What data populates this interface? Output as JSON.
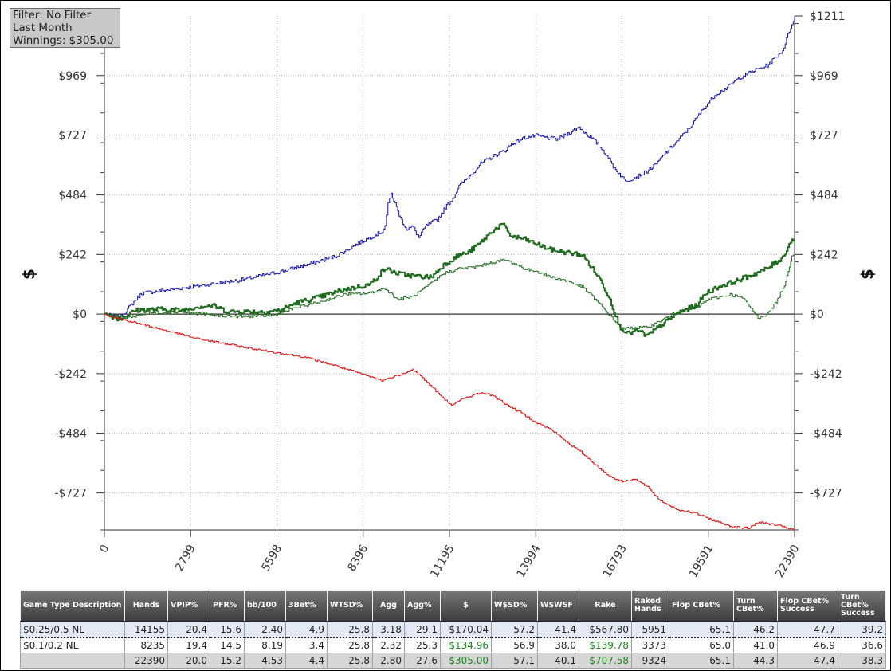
{
  "info": {
    "filter": "Filter: No Filter",
    "period": "Last Month",
    "winnings": "Winnings: $305.00"
  },
  "chart_data": {
    "type": "line",
    "ylabel": "$",
    "y_right_label": "$",
    "ylim": [
      -877,
      1211
    ],
    "xlim": [
      0,
      22390
    ],
    "y_ticks": [
      {
        "value": 1211,
        "label": "$1211"
      },
      {
        "value": 969,
        "label": "$969"
      },
      {
        "value": 727,
        "label": "$727"
      },
      {
        "value": 484,
        "label": "$484"
      },
      {
        "value": 242,
        "label": "$242"
      },
      {
        "value": 0,
        "label": "$0"
      },
      {
        "value": -242,
        "label": "-$242"
      },
      {
        "value": -484,
        "label": "-$484"
      },
      {
        "value": -727,
        "label": "-$727"
      }
    ],
    "x_ticks": [
      {
        "value": 0,
        "label": "0"
      },
      {
        "value": 2799,
        "label": "2799"
      },
      {
        "value": 5598,
        "label": "5598"
      },
      {
        "value": 8396,
        "label": "8396"
      },
      {
        "value": 11195,
        "label": "11195"
      },
      {
        "value": 13994,
        "label": "13994"
      },
      {
        "value": 16793,
        "label": "16793"
      },
      {
        "value": 19591,
        "label": "19591"
      },
      {
        "value": 22390,
        "label": "22390"
      }
    ],
    "grid": true,
    "series": [
      {
        "color": "#1010aa",
        "width": 1,
        "noise": 8,
        "points": [
          [
            0,
            0
          ],
          [
            500,
            -15
          ],
          [
            1200,
            85
          ],
          [
            2800,
            110
          ],
          [
            4500,
            140
          ],
          [
            5800,
            175
          ],
          [
            6700,
            205
          ],
          [
            7500,
            235
          ],
          [
            8200,
            285
          ],
          [
            9000,
            335
          ],
          [
            9100,
            360
          ],
          [
            9200,
            445
          ],
          [
            9300,
            490
          ],
          [
            9600,
            390
          ],
          [
            9800,
            345
          ],
          [
            10000,
            355
          ],
          [
            10200,
            310
          ],
          [
            10400,
            355
          ],
          [
            10800,
            385
          ],
          [
            11100,
            440
          ],
          [
            11300,
            470
          ],
          [
            11500,
            520
          ],
          [
            11800,
            555
          ],
          [
            12200,
            610
          ],
          [
            12600,
            640
          ],
          [
            13000,
            665
          ],
          [
            13200,
            690
          ],
          [
            13600,
            715
          ],
          [
            14000,
            725
          ],
          [
            14400,
            715
          ],
          [
            14700,
            710
          ],
          [
            15000,
            730
          ],
          [
            15400,
            760
          ],
          [
            15600,
            735
          ],
          [
            15800,
            715
          ],
          [
            16000,
            690
          ],
          [
            16300,
            645
          ],
          [
            16500,
            600
          ],
          [
            16700,
            570
          ],
          [
            16900,
            540
          ],
          [
            17300,
            560
          ],
          [
            17600,
            580
          ],
          [
            17900,
            610
          ],
          [
            18200,
            655
          ],
          [
            18600,
            705
          ],
          [
            19000,
            760
          ],
          [
            19400,
            830
          ],
          [
            19800,
            890
          ],
          [
            20200,
            920
          ],
          [
            20600,
            960
          ],
          [
            21000,
            985
          ],
          [
            21500,
            1010
          ],
          [
            22000,
            1070
          ],
          [
            22300,
            1180
          ],
          [
            22390,
            1211
          ]
        ]
      },
      {
        "color": "#1f6b1f",
        "width": 2,
        "noise": 10,
        "points": [
          [
            0,
            0
          ],
          [
            500,
            -20
          ],
          [
            1000,
            15
          ],
          [
            1800,
            20
          ],
          [
            2500,
            15
          ],
          [
            3000,
            30
          ],
          [
            3500,
            35
          ],
          [
            4000,
            10
          ],
          [
            5200,
            10
          ],
          [
            5700,
            15
          ],
          [
            6200,
            45
          ],
          [
            7000,
            70
          ],
          [
            7800,
            100
          ],
          [
            8600,
            120
          ],
          [
            9100,
            185
          ],
          [
            9500,
            165
          ],
          [
            10000,
            155
          ],
          [
            10600,
            150
          ],
          [
            11000,
            200
          ],
          [
            11500,
            240
          ],
          [
            11800,
            250
          ],
          [
            12200,
            290
          ],
          [
            12600,
            340
          ],
          [
            12900,
            365
          ],
          [
            13200,
            315
          ],
          [
            13600,
            305
          ],
          [
            14000,
            285
          ],
          [
            14500,
            260
          ],
          [
            15000,
            250
          ],
          [
            15500,
            240
          ],
          [
            15800,
            190
          ],
          [
            16100,
            135
          ],
          [
            16400,
            60
          ],
          [
            16700,
            -50
          ],
          [
            17000,
            -80
          ],
          [
            17300,
            -65
          ],
          [
            17600,
            -90
          ],
          [
            18000,
            -50
          ],
          [
            18600,
            5
          ],
          [
            19200,
            35
          ],
          [
            19500,
            85
          ],
          [
            20000,
            115
          ],
          [
            20500,
            135
          ],
          [
            21000,
            160
          ],
          [
            21500,
            185
          ],
          [
            22000,
            230
          ],
          [
            22300,
            305
          ],
          [
            22390,
            300
          ]
        ]
      },
      {
        "color": "#1f6b1f",
        "width": 1,
        "noise": 6,
        "points": [
          [
            0,
            0
          ],
          [
            700,
            -15
          ],
          [
            1500,
            5
          ],
          [
            2500,
            10
          ],
          [
            3500,
            -5
          ],
          [
            4500,
            -10
          ],
          [
            5500,
            -5
          ],
          [
            6200,
            25
          ],
          [
            7000,
            50
          ],
          [
            7800,
            80
          ],
          [
            8600,
            85
          ],
          [
            9100,
            105
          ],
          [
            9500,
            60
          ],
          [
            10000,
            70
          ],
          [
            10500,
            115
          ],
          [
            11000,
            165
          ],
          [
            11500,
            185
          ],
          [
            12000,
            190
          ],
          [
            12600,
            210
          ],
          [
            13000,
            220
          ],
          [
            13300,
            205
          ],
          [
            13700,
            180
          ],
          [
            14000,
            175
          ],
          [
            14500,
            150
          ],
          [
            15000,
            135
          ],
          [
            15500,
            110
          ],
          [
            15800,
            75
          ],
          [
            16100,
            35
          ],
          [
            16500,
            -20
          ],
          [
            16800,
            -60
          ],
          [
            17200,
            -55
          ],
          [
            17600,
            -55
          ],
          [
            18000,
            -30
          ],
          [
            18600,
            10
          ],
          [
            19200,
            25
          ],
          [
            19600,
            60
          ],
          [
            20000,
            70
          ],
          [
            20300,
            80
          ],
          [
            20700,
            65
          ],
          [
            21000,
            20
          ],
          [
            21200,
            -15
          ],
          [
            21500,
            0
          ],
          [
            21800,
            50
          ],
          [
            22100,
            130
          ],
          [
            22300,
            240
          ],
          [
            22390,
            245
          ]
        ]
      },
      {
        "color": "#dd1111",
        "width": 1,
        "noise": 4,
        "points": [
          [
            0,
            0
          ],
          [
            500,
            -20
          ],
          [
            1000,
            -35
          ],
          [
            3000,
            -100
          ],
          [
            5000,
            -145
          ],
          [
            6500,
            -175
          ],
          [
            7500,
            -210
          ],
          [
            8500,
            -250
          ],
          [
            9000,
            -270
          ],
          [
            9500,
            -250
          ],
          [
            10000,
            -225
          ],
          [
            10500,
            -280
          ],
          [
            11000,
            -345
          ],
          [
            11300,
            -370
          ],
          [
            11600,
            -345
          ],
          [
            12200,
            -320
          ],
          [
            12600,
            -330
          ],
          [
            13000,
            -365
          ],
          [
            13500,
            -400
          ],
          [
            14000,
            -440
          ],
          [
            14500,
            -470
          ],
          [
            15000,
            -520
          ],
          [
            15500,
            -565
          ],
          [
            16000,
            -620
          ],
          [
            16400,
            -660
          ],
          [
            16800,
            -680
          ],
          [
            17200,
            -670
          ],
          [
            17600,
            -700
          ],
          [
            18000,
            -755
          ],
          [
            18600,
            -795
          ],
          [
            19200,
            -810
          ],
          [
            19800,
            -840
          ],
          [
            20400,
            -865
          ],
          [
            20900,
            -870
          ],
          [
            21200,
            -845
          ],
          [
            21700,
            -855
          ],
          [
            22200,
            -870
          ],
          [
            22390,
            -877
          ]
        ]
      }
    ]
  },
  "table": {
    "headers": [
      "Game Type Description",
      "Hands",
      "VPIP%",
      "PFR%",
      "bb/100",
      "3Bet%",
      "WTSD%",
      "Agg",
      "Agg%",
      "$",
      "W$SD%",
      "W$WSF",
      "Rake",
      "Raked Hands",
      "Flop CBet%",
      "Turn CBet%",
      "Flop CBet% Success",
      "Turn CBet% Success"
    ],
    "rows": [
      [
        "$0.25/0.5 NL",
        "14155",
        "20.4",
        "15.6",
        "2.40",
        "4.9",
        "25.8",
        "3.18",
        "29.1",
        "$170.04",
        "57.2",
        "41.4",
        "$567.80",
        "5951",
        "65.1",
        "46.2",
        "47.7",
        "39.2"
      ],
      [
        "$0.1/0.2 NL",
        "8235",
        "19.4",
        "14.5",
        "8.19",
        "3.4",
        "25.8",
        "2.32",
        "25.3",
        "$134.96",
        "56.9",
        "38.0",
        "$139.78",
        "3373",
        "65.0",
        "41.0",
        "46.9",
        "36.6"
      ],
      [
        "",
        "22390",
        "20.0",
        "15.2",
        "4.53",
        "4.4",
        "25.8",
        "2.80",
        "27.6",
        "$305.00",
        "57.1",
        "40.1",
        "$707.58",
        "9324",
        "65.1",
        "44.3",
        "47.4",
        "38.3"
      ]
    ]
  }
}
